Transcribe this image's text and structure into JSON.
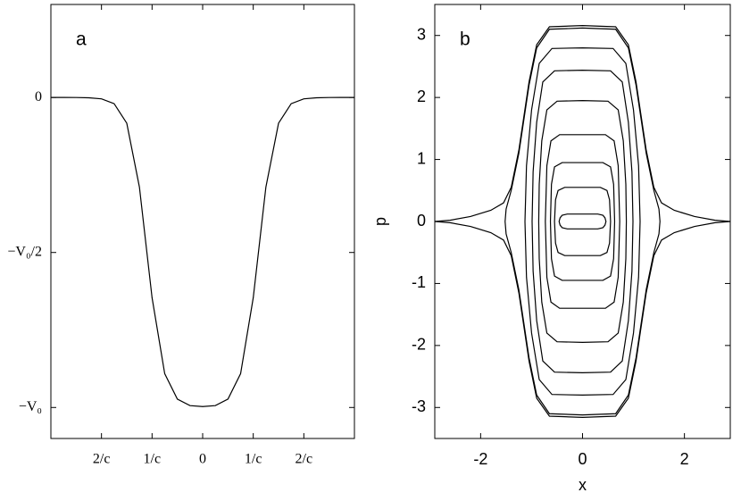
{
  "chart_data": [
    {
      "type": "line",
      "label": "a",
      "color": "#000000",
      "x": [
        -3,
        -2.75,
        -2.5,
        -2.25,
        -2,
        -1.75,
        -1.5,
        -1.25,
        -1,
        -0.75,
        -0.5,
        -0.25,
        0,
        0.25,
        0.5,
        0.75,
        1,
        1.25,
        1.5,
        1.75,
        2,
        2.25,
        2.5,
        2.75,
        3
      ],
      "values": [
        0,
        0,
        -0.0002,
        -0.001,
        -0.0045,
        -0.02,
        -0.083,
        -0.289,
        -0.646,
        -0.891,
        -0.973,
        -0.994,
        -0.997,
        -0.994,
        -0.973,
        -0.891,
        -0.646,
        -0.289,
        -0.083,
        -0.02,
        -0.0045,
        -0.001,
        -0.0002,
        0,
        0
      ],
      "xlim": [
        -3,
        3
      ],
      "ylim": [
        -1.1,
        0.3
      ],
      "xticks": [
        {
          "value": -2,
          "label": "2/c"
        },
        {
          "value": -1,
          "label": "1/c"
        },
        0,
        {
          "value": 1,
          "label": "1/c"
        },
        {
          "value": 2,
          "label": "2/c"
        }
      ],
      "yticks": [
        0,
        {
          "value": -0.5,
          "label": "−V₀/2"
        },
        {
          "value": -1,
          "label": "−V₀"
        }
      ]
    },
    {
      "type": "line",
      "label": "b",
      "xlabel": "x",
      "ylabel": "p",
      "color": "#000000",
      "series": [
        {
          "closed": true,
          "x": [
            -0.46,
            -0.44,
            -0.4,
            -0.3,
            0,
            0.3,
            0.4,
            0.44,
            0.46,
            0.44,
            0.4,
            0.3,
            0,
            -0.3,
            -0.4,
            -0.44
          ],
          "y": [
            0,
            0.06,
            0.1,
            0.12,
            0.12,
            0.12,
            0.1,
            0.06,
            0,
            -0.06,
            -0.1,
            -0.12,
            -0.12,
            -0.12,
            -0.1,
            -0.06
          ]
        },
        {
          "closed": true,
          "x": [
            -0.55,
            -0.53,
            -0.48,
            -0.35,
            0,
            0.35,
            0.48,
            0.53,
            0.55,
            0.53,
            0.48,
            0.35,
            0,
            -0.35,
            -0.48,
            -0.53
          ],
          "y": [
            0,
            0.35,
            0.5,
            0.55,
            0.55,
            0.55,
            0.5,
            0.35,
            0,
            -0.35,
            -0.5,
            -0.55,
            -0.55,
            -0.55,
            -0.5,
            -0.35
          ]
        },
        {
          "closed": true,
          "x": [
            -0.63,
            -0.61,
            -0.55,
            -0.4,
            0,
            0.4,
            0.55,
            0.61,
            0.63,
            0.61,
            0.55,
            0.4,
            0,
            -0.4,
            -0.55,
            -0.61
          ],
          "y": [
            0,
            0.6,
            0.88,
            0.95,
            0.95,
            0.95,
            0.88,
            0.6,
            0,
            -0.6,
            -0.88,
            -0.95,
            -0.95,
            -0.95,
            -0.88,
            -0.6
          ]
        },
        {
          "closed": true,
          "x": [
            -0.73,
            -0.7,
            -0.62,
            -0.45,
            0,
            0.45,
            0.62,
            0.7,
            0.73,
            0.7,
            0.62,
            0.45,
            0,
            -0.45,
            -0.62,
            -0.7
          ],
          "y": [
            0,
            0.9,
            1.3,
            1.4,
            1.4,
            1.4,
            1.3,
            0.9,
            0,
            -0.9,
            -1.3,
            -1.4,
            -1.4,
            -1.4,
            -1.3,
            -0.9
          ]
        },
        {
          "closed": true,
          "x": [
            -0.86,
            -0.85,
            -0.8,
            -0.7,
            -0.5,
            0,
            0.5,
            0.7,
            0.8,
            0.85,
            0.86,
            0.85,
            0.8,
            0.7,
            0.5,
            0,
            -0.5,
            -0.7,
            -0.8,
            -0.85
          ],
          "y": [
            0,
            0.6,
            1.3,
            1.8,
            1.94,
            1.95,
            1.94,
            1.8,
            1.3,
            0.6,
            0,
            -0.6,
            -1.3,
            -1.8,
            -1.94,
            -1.95,
            -1.94,
            -1.8,
            -1.3,
            -0.6
          ]
        },
        {
          "closed": true,
          "x": [
            -0.99,
            -0.97,
            -0.9,
            -0.78,
            -0.55,
            0,
            0.55,
            0.78,
            0.9,
            0.97,
            0.99,
            0.97,
            0.9,
            0.78,
            0.55,
            0,
            -0.55,
            -0.78,
            -0.9,
            -0.97
          ],
          "y": [
            0,
            0.8,
            1.6,
            2.25,
            2.43,
            2.44,
            2.43,
            2.25,
            1.6,
            0.8,
            0,
            -0.8,
            -1.6,
            -2.25,
            -2.43,
            -2.44,
            -2.43,
            -2.25,
            -1.6,
            -0.8
          ]
        },
        {
          "closed": true,
          "x": [
            -1.13,
            -1.1,
            -1.0,
            -0.85,
            -0.6,
            0,
            0.6,
            0.85,
            1.0,
            1.1,
            1.13,
            1.1,
            1.0,
            0.85,
            0.6,
            0,
            -0.6,
            -0.85,
            -1.0,
            -1.1
          ],
          "y": [
            0,
            0.9,
            1.8,
            2.55,
            2.79,
            2.8,
            2.79,
            2.55,
            1.8,
            0.9,
            0,
            -0.9,
            -1.8,
            -2.55,
            -2.79,
            -2.8,
            -2.79,
            -2.55,
            -1.8,
            -0.9
          ]
        },
        {
          "closed": true,
          "x": [
            -1.52,
            -1.5,
            -1.4,
            -1.25,
            -1.05,
            -0.9,
            -0.65,
            0,
            0.65,
            0.9,
            1.05,
            1.25,
            1.4,
            1.5,
            1.52,
            1.5,
            1.4,
            1.25,
            1.05,
            0.9,
            0.65,
            0,
            -0.65,
            -0.9,
            -1.05,
            -1.25,
            -1.4,
            -1.5
          ],
          "y": [
            0,
            0.2,
            0.5,
            1.1,
            2.2,
            2.8,
            3.1,
            3.12,
            3.1,
            2.8,
            2.2,
            1.1,
            0.5,
            0.2,
            0,
            -0.2,
            -0.5,
            -1.1,
            -2.2,
            -2.8,
            -3.1,
            -3.12,
            -3.1,
            -2.8,
            -2.2,
            -1.1,
            -0.5,
            -0.2
          ]
        },
        {
          "closed": false,
          "x": [
            -2.9,
            -2.6,
            -2.2,
            -1.8,
            -1.55,
            -1.4,
            -1.25,
            -1.05,
            -0.9,
            -0.65,
            0,
            0.65,
            0.9,
            1.05,
            1.25,
            1.4,
            1.55,
            1.8,
            2.2,
            2.6,
            2.9
          ],
          "y": [
            0,
            0.02,
            0.08,
            0.18,
            0.3,
            0.55,
            1.15,
            2.25,
            2.85,
            3.14,
            3.16,
            3.14,
            2.85,
            2.25,
            1.15,
            0.55,
            0.3,
            0.18,
            0.08,
            0.02,
            0
          ]
        },
        {
          "closed": false,
          "x": [
            -2.9,
            -2.6,
            -2.2,
            -1.8,
            -1.55,
            -1.4,
            -1.25,
            -1.05,
            -0.9,
            -0.65,
            0,
            0.65,
            0.9,
            1.05,
            1.25,
            1.4,
            1.55,
            1.8,
            2.2,
            2.6,
            2.9
          ],
          "y": [
            0,
            -0.02,
            -0.08,
            -0.18,
            -0.3,
            -0.55,
            -1.15,
            -2.25,
            -2.85,
            -3.14,
            -3.16,
            -3.14,
            -2.85,
            -2.25,
            -1.15,
            -0.55,
            -0.3,
            -0.18,
            -0.08,
            -0.02,
            0
          ]
        }
      ],
      "xlim": [
        -2.9,
        2.9
      ],
      "ylim": [
        -3.5,
        3.5
      ],
      "xticks": [
        -2,
        0,
        2
      ],
      "yticks": [
        -3,
        -2,
        -1,
        0,
        1,
        2,
        3
      ]
    }
  ]
}
